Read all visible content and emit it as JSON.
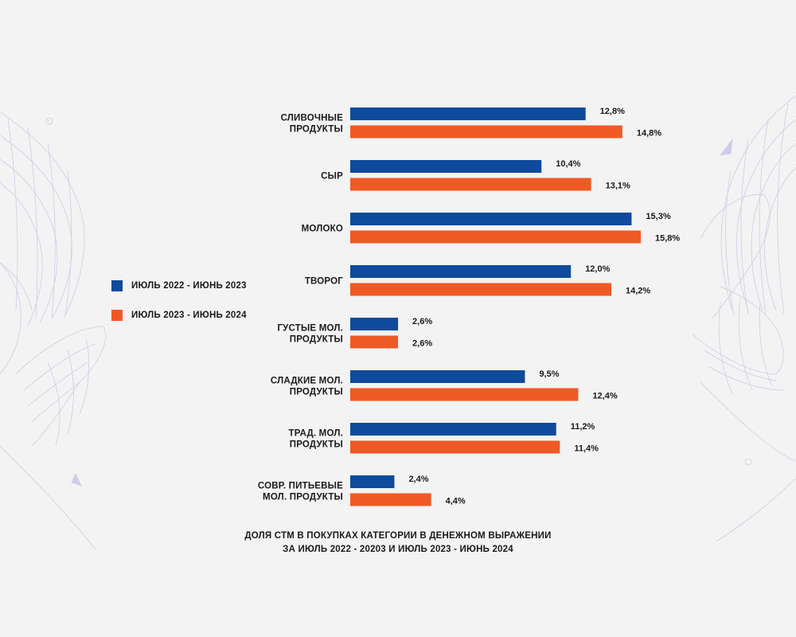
{
  "colors": {
    "series_2023": "#0f4a9c",
    "series_2024": "#ef5a24",
    "background": "#f3f3f3",
    "decor": "#c9c9e6"
  },
  "legend": {
    "items": [
      {
        "label": "ИЮЛЬ 2022 - ИЮНЬ 2023",
        "color": "#0f4a9c"
      },
      {
        "label": "ИЮЛЬ 2023 - ИЮНЬ 2024",
        "color": "#ef5a24"
      }
    ]
  },
  "caption": {
    "line1": "ДОЛЯ СТМ В ПОКУПКАХ КАТЕГОРИИ В ДЕНЕЖНОМ ВЫРАЖЕНИИ",
    "line2": "ЗА ИЮЛЬ 2022 - 20203 И ИЮЛЬ 2023 - ИЮНЬ 2024"
  },
  "decor_icons": [
    "hand-mesh-left-icon",
    "hand-mesh-right-icon"
  ],
  "chart_data": {
    "type": "bar",
    "orientation": "horizontal",
    "title": "ДОЛЯ СТМ В ПОКУПКАХ КАТЕГОРИИ В ДЕНЕЖНОМ ВЫРАЖЕНИИ ЗА ИЮЛЬ 2022 - 20203 И ИЮЛЬ 2023 - ИЮНЬ 2024",
    "xlabel": "",
    "ylabel": "",
    "xlim": [
      0,
      16
    ],
    "grid": false,
    "legend_position": "left",
    "categories": [
      [
        "СЛИВОЧНЫЕ",
        "ПРОДУКТЫ"
      ],
      [
        "СЫР"
      ],
      [
        "МОЛОКО"
      ],
      [
        "ТВОРОГ"
      ],
      [
        "ГУСТЫЕ МОЛ.",
        "ПРОДУКТЫ"
      ],
      [
        "СЛАДКИЕ МОЛ.",
        "ПРОДУКТЫ"
      ],
      [
        "ТРАД. МОЛ.",
        "ПРОДУКТЫ"
      ],
      [
        "СОВР. ПИТЬЕВЫЕ",
        "МОЛ. ПРОДУКТЫ"
      ]
    ],
    "series": [
      {
        "name": "ИЮЛЬ 2022 - ИЮНЬ 2023",
        "color": "#0f4a9c",
        "values": [
          12.8,
          10.4,
          15.3,
          12.0,
          2.6,
          9.5,
          11.2,
          2.4
        ],
        "labels": [
          "12,8%",
          "10,4%",
          "15,3%",
          "12,0%",
          "2,6%",
          "9,5%",
          "11,2%",
          "2,4%"
        ]
      },
      {
        "name": "ИЮЛЬ 2023 - ИЮНЬ 2024",
        "color": "#ef5a24",
        "values": [
          14.8,
          13.1,
          15.8,
          14.2,
          2.6,
          12.4,
          11.4,
          4.4
        ],
        "labels": [
          "14,8%",
          "13,1%",
          "15,8%",
          "14,2%",
          "2,6%",
          "12,4%",
          "11,4%",
          "4,4%"
        ]
      }
    ]
  }
}
